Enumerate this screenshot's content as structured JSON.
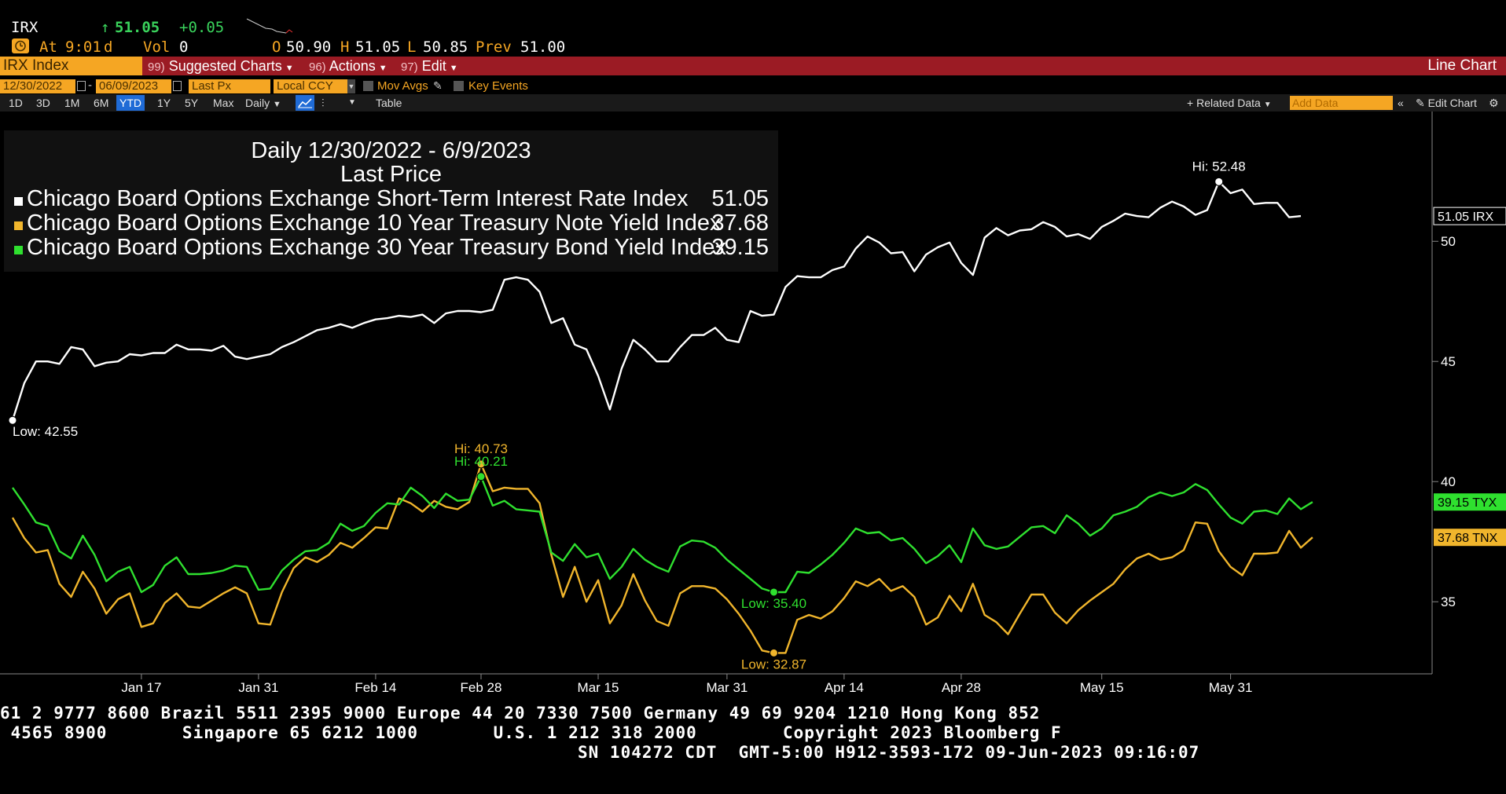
{
  "quote": {
    "ticker": "IRX",
    "arrow": "↑",
    "last": "51.05",
    "change": "+0.05",
    "at_label": "At",
    "time": "9:01",
    "time_flag": "d",
    "vol_label": "Vol",
    "vol": "0",
    "open_label": "O",
    "open": "50.90",
    "high_label": "H",
    "high": "51.05",
    "low_label": "L",
    "low": "50.85",
    "prev_label": "Prev",
    "prev": "51.00"
  },
  "menu": {
    "security": "IRX Index",
    "suggested_num": "99)",
    "suggested": "Suggested Charts",
    "actions_num": "96)",
    "actions": "Actions",
    "edit_num": "97)",
    "edit": "Edit",
    "chart_type": "Line Chart"
  },
  "fields": {
    "start_date": "12/30/2022",
    "end_date": "06/09/2023",
    "price_field": "Last Px",
    "currency": "Local CCY",
    "mov_avgs": "Mov Avgs",
    "key_events": "Key Events"
  },
  "toolbar": {
    "ranges": [
      "1D",
      "3D",
      "1M",
      "6M",
      "YTD",
      "1Y",
      "5Y",
      "Max"
    ],
    "active_range": "YTD",
    "frequency": "Daily",
    "table": "Table",
    "related_data": "Related Data",
    "add_data_placeholder": "Add Data",
    "edit_chart": "Edit Chart"
  },
  "legend": {
    "title1": "Daily 12/30/2022 - 6/9/2023",
    "title2": "Last Price",
    "rows": [
      {
        "name": "Chicago Board Options Exchange Short-Term Interest Rate Index",
        "value": "51.05",
        "color": "#ffffff"
      },
      {
        "name": "Chicago Board Options Exchange 10 Year Treasury Note Yield Index",
        "value": "37.68",
        "color": "#f0b52c"
      },
      {
        "name": "Chicago Board Options Exchange 30 Year Treasury Bond Yield Index",
        "value": "39.15",
        "color": "#2fe02f"
      }
    ]
  },
  "chart_data": {
    "type": "line",
    "x_tick_labels": [
      "Jan 17",
      "Jan 31",
      "Feb 14",
      "Feb 28",
      "Mar 15",
      "Mar 31",
      "Apr 14",
      "Apr 28",
      "May 15",
      "May 31"
    ],
    "x_tick_index": [
      11,
      21,
      31,
      40,
      50,
      61,
      71,
      81,
      93,
      104
    ],
    "year_label": "2023",
    "y_ticks": [
      35,
      40,
      45,
      50
    ],
    "ylim": [
      32,
      55.4
    ],
    "grid": false,
    "series": [
      {
        "ticker": "IRX",
        "end_label": "51.05 IRX",
        "color": "#ffffff",
        "values": [
          42.55,
          44.1,
          45.0,
          45.0,
          44.9,
          45.6,
          45.5,
          44.8,
          44.95,
          45.0,
          45.3,
          45.25,
          45.35,
          45.35,
          45.7,
          45.5,
          45.5,
          45.45,
          45.65,
          45.2,
          45.1,
          45.2,
          45.3,
          45.6,
          45.8,
          46.05,
          46.3,
          46.4,
          46.55,
          46.4,
          46.6,
          46.75,
          46.8,
          46.9,
          46.85,
          46.95,
          46.6,
          47.0,
          47.1,
          47.1,
          47.05,
          47.15,
          48.4,
          48.5,
          48.4,
          47.9,
          46.6,
          46.8,
          45.7,
          45.5,
          44.4,
          43.0,
          44.7,
          45.9,
          45.5,
          45.0,
          45.0,
          45.6,
          46.1,
          46.1,
          46.4,
          45.9,
          45.8,
          47.1,
          46.9,
          46.95,
          48.1,
          48.55,
          48.5,
          48.5,
          48.8,
          48.95,
          49.7,
          50.2,
          49.95,
          49.5,
          49.55,
          48.75,
          49.45,
          49.75,
          49.95,
          49.1,
          48.6,
          50.15,
          50.55,
          50.25,
          50.45,
          50.5,
          50.8,
          50.6,
          50.2,
          50.3,
          50.1,
          50.6,
          50.85,
          51.15,
          51.05,
          51.0,
          51.4,
          51.65,
          51.45,
          51.1,
          51.3,
          52.48,
          52.0,
          52.15,
          51.55,
          51.6,
          51.6,
          51.0,
          51.05
        ],
        "markers": [
          {
            "index": 0,
            "label": "Low: 42.55",
            "kind": "low"
          },
          {
            "index": 103,
            "label": "Hi: 52.48",
            "kind": "hi"
          }
        ]
      },
      {
        "ticker": "TNX",
        "end_label": "37.68 TNX",
        "color": "#f0b52c",
        "values": [
          38.5,
          37.65,
          37.05,
          37.15,
          35.75,
          35.2,
          36.25,
          35.55,
          34.5,
          35.1,
          35.35,
          33.95,
          34.1,
          34.95,
          35.35,
          34.8,
          34.75,
          35.05,
          35.35,
          35.6,
          35.35,
          34.1,
          34.05,
          35.4,
          36.4,
          36.85,
          36.65,
          36.95,
          37.45,
          37.25,
          37.65,
          38.1,
          38.05,
          39.3,
          39.1,
          38.75,
          39.2,
          38.95,
          38.85,
          39.15,
          40.73,
          39.6,
          39.75,
          39.7,
          39.7,
          39.1,
          36.95,
          35.2,
          36.45,
          35.0,
          35.9,
          34.1,
          34.85,
          36.15,
          35.05,
          34.2,
          34.0,
          35.35,
          35.65,
          35.65,
          35.55,
          35.1,
          34.5,
          33.8,
          32.97,
          32.87,
          32.87,
          34.25,
          34.45,
          34.3,
          34.6,
          35.15,
          35.85,
          35.65,
          35.95,
          35.45,
          35.65,
          35.2,
          34.05,
          34.35,
          35.25,
          34.6,
          35.75,
          34.45,
          34.15,
          33.65,
          34.5,
          35.3,
          35.3,
          34.55,
          34.1,
          34.65,
          35.05,
          35.4,
          35.75,
          36.35,
          36.8,
          37.0,
          36.75,
          36.85,
          37.15,
          38.3,
          38.25,
          37.1,
          36.45,
          36.1,
          37.0,
          37.0,
          37.05,
          37.95,
          37.25,
          37.68
        ],
        "markers": [
          {
            "index": 40,
            "label": "Hi: 40.73",
            "kind": "hi"
          },
          {
            "index": 65,
            "label": "Low: 32.87",
            "kind": "low"
          }
        ]
      },
      {
        "ticker": "TYX",
        "end_label": "39.15 TYX",
        "color": "#2fe02f",
        "values": [
          39.75,
          39.05,
          38.3,
          38.15,
          37.1,
          36.8,
          37.75,
          36.95,
          35.85,
          36.25,
          36.45,
          35.4,
          35.7,
          36.5,
          36.85,
          36.15,
          36.15,
          36.2,
          36.3,
          36.5,
          36.45,
          35.5,
          35.55,
          36.3,
          36.75,
          37.1,
          37.15,
          37.45,
          38.25,
          37.95,
          38.15,
          38.7,
          39.1,
          39.05,
          39.75,
          39.4,
          38.9,
          39.5,
          39.2,
          39.25,
          40.21,
          39.0,
          39.2,
          38.85,
          38.8,
          38.75,
          37.05,
          36.7,
          37.4,
          36.85,
          37.0,
          35.95,
          36.45,
          37.2,
          36.75,
          36.45,
          36.25,
          37.3,
          37.55,
          37.5,
          37.25,
          36.75,
          36.35,
          35.95,
          35.55,
          35.4,
          35.4,
          36.25,
          36.2,
          36.55,
          36.95,
          37.45,
          38.05,
          37.85,
          37.9,
          37.55,
          37.65,
          37.2,
          36.6,
          36.9,
          37.35,
          36.65,
          38.05,
          37.35,
          37.2,
          37.3,
          37.7,
          38.1,
          38.15,
          37.85,
          38.6,
          38.25,
          37.75,
          38.05,
          38.6,
          38.75,
          38.95,
          39.35,
          39.55,
          39.4,
          39.55,
          39.9,
          39.65,
          39.05,
          38.5,
          38.25,
          38.75,
          38.8,
          38.65,
          39.3,
          38.85,
          39.15
        ],
        "markers": [
          {
            "index": 40,
            "label": "Hi: 40.21",
            "kind": "hi"
          },
          {
            "index": 65,
            "label": "Low: 35.40",
            "kind": "low"
          }
        ]
      }
    ]
  },
  "footer": {
    "line1": "61 2 9777 8600 Brazil 5511 2395 9000 Europe 44 20 7330 7500 Germany 49 69 9204 1210 Hong Kong 852",
    "line2": " 4565 8900       Singapore 65 6212 1000       U.S. 1 212 318 2000        Copyright 2023 Bloomberg F",
    "line3": "SN 104272 CDT  GMT-5:00 H912-3593-172 09-Jun-2023 09:16:07"
  }
}
